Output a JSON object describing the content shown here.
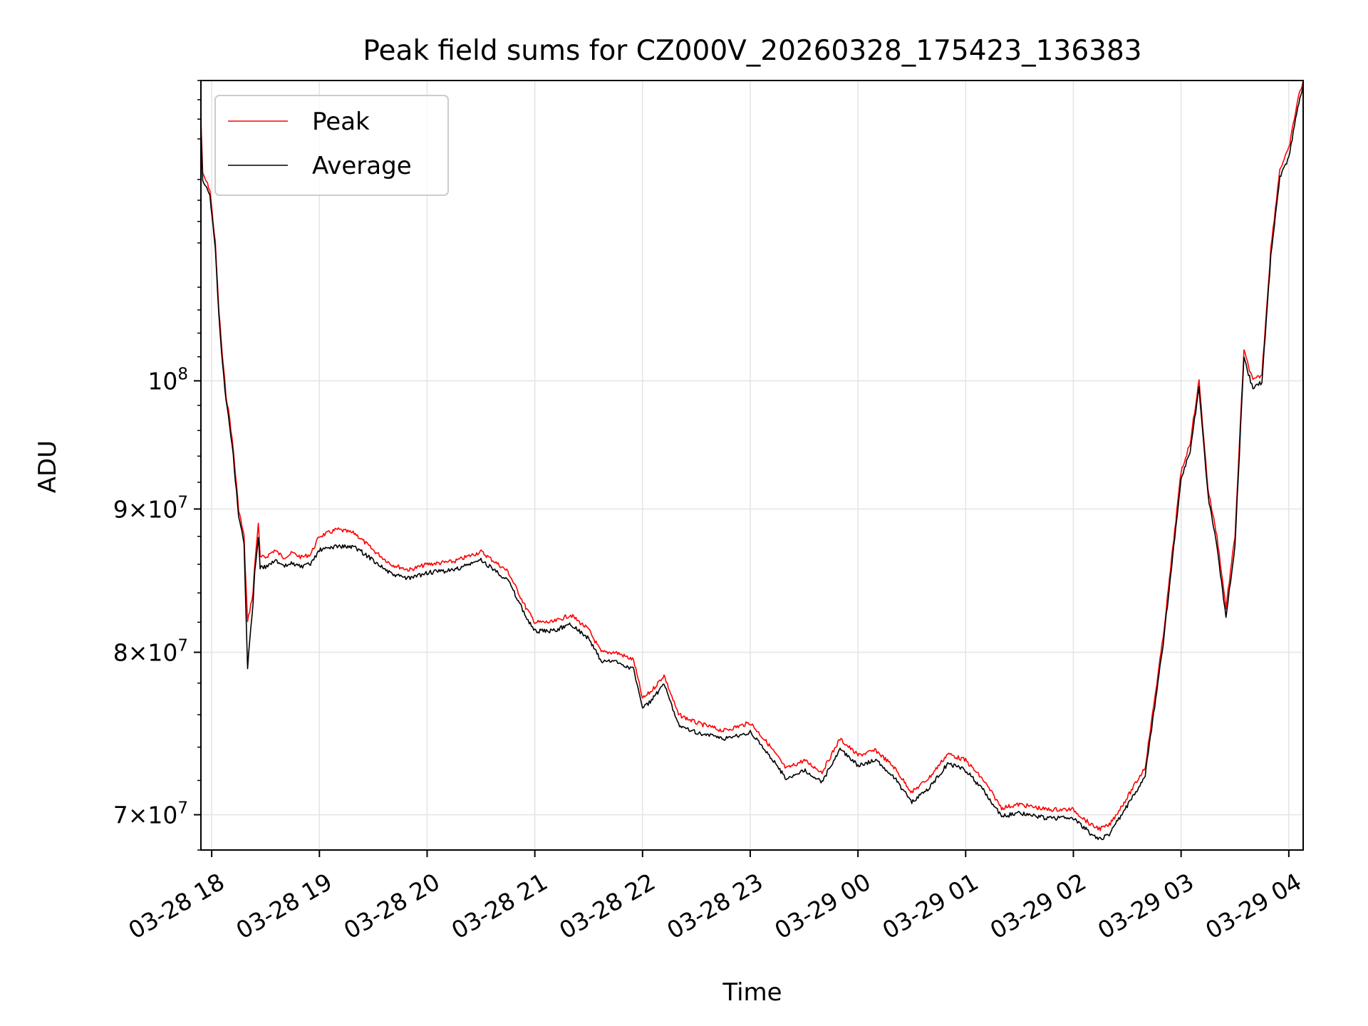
{
  "chart_data": {
    "type": "line",
    "title": "Peak field sums for CZ000V_20260328_175423_136383",
    "xlabel": "Time",
    "ylabel": "ADU",
    "y_scale": "log",
    "ylim": [
      68000000,
      128000000
    ],
    "xlim": [
      "2026-03-28 17:54",
      "2026-03-29 04:08"
    ],
    "grid": true,
    "legend_position": "upper left",
    "x_ticks": [
      {
        "t": "2026-03-28 18:00",
        "label": "03-28 18"
      },
      {
        "t": "2026-03-28 19:00",
        "label": "03-28 19"
      },
      {
        "t": "2026-03-28 20:00",
        "label": "03-28 20"
      },
      {
        "t": "2026-03-28 21:00",
        "label": "03-28 21"
      },
      {
        "t": "2026-03-28 22:00",
        "label": "03-28 22"
      },
      {
        "t": "2026-03-28 23:00",
        "label": "03-28 23"
      },
      {
        "t": "2026-03-29 00:00",
        "label": "03-29 00"
      },
      {
        "t": "2026-03-29 01:00",
        "label": "03-29 01"
      },
      {
        "t": "2026-03-29 02:00",
        "label": "03-29 02"
      },
      {
        "t": "2026-03-29 03:00",
        "label": "03-29 03"
      },
      {
        "t": "2026-03-29 04:00",
        "label": "03-29 04"
      }
    ],
    "y_ticks": [
      {
        "value": 70000000,
        "mantissa": "7",
        "base": "10",
        "exp": "7"
      },
      {
        "value": 80000000,
        "mantissa": "8",
        "base": "10",
        "exp": "7"
      },
      {
        "value": 90000000,
        "mantissa": "9",
        "base": "10",
        "exp": "7"
      },
      {
        "value": 100000000,
        "mantissa": "",
        "base": "10",
        "exp": "8"
      }
    ],
    "series": [
      {
        "name": "Peak",
        "color": "#ff0000",
        "x": [
          "2026-03-28 17:54",
          "2026-03-28 17:55",
          "2026-03-28 17:57",
          "2026-03-28 17:59",
          "2026-03-28 18:02",
          "2026-03-28 18:04",
          "2026-03-28 18:06",
          "2026-03-28 18:08",
          "2026-03-28 18:10",
          "2026-03-28 18:12",
          "2026-03-28 18:15",
          "2026-03-28 18:18",
          "2026-03-28 18:20",
          "2026-03-28 18:23",
          "2026-03-28 18:24",
          "2026-03-28 18:26",
          "2026-03-28 18:27",
          "2026-03-28 18:30",
          "2026-03-28 18:35",
          "2026-03-28 18:40",
          "2026-03-28 18:45",
          "2026-03-28 18:50",
          "2026-03-28 18:55",
          "2026-03-28 19:00",
          "2026-03-28 19:10",
          "2026-03-28 19:20",
          "2026-03-28 19:30",
          "2026-03-28 19:40",
          "2026-03-28 19:50",
          "2026-03-28 20:00",
          "2026-03-28 20:15",
          "2026-03-28 20:30",
          "2026-03-28 20:45",
          "2026-03-28 20:55",
          "2026-03-28 21:00",
          "2026-03-28 21:10",
          "2026-03-28 21:20",
          "2026-03-28 21:30",
          "2026-03-28 21:37",
          "2026-03-28 21:45",
          "2026-03-28 21:55",
          "2026-03-28 22:00",
          "2026-03-28 22:05",
          "2026-03-28 22:12",
          "2026-03-28 22:20",
          "2026-03-28 22:30",
          "2026-03-28 22:45",
          "2026-03-28 23:00",
          "2026-03-28 23:10",
          "2026-03-28 23:20",
          "2026-03-28 23:30",
          "2026-03-28 23:40",
          "2026-03-28 23:50",
          "2026-03-29 00:00",
          "2026-03-29 00:10",
          "2026-03-29 00:20",
          "2026-03-29 00:30",
          "2026-03-29 00:40",
          "2026-03-29 00:50",
          "2026-03-29 01:00",
          "2026-03-29 01:10",
          "2026-03-29 01:20",
          "2026-03-29 01:30",
          "2026-03-29 01:45",
          "2026-03-29 02:00",
          "2026-03-29 02:10",
          "2026-03-29 02:15",
          "2026-03-29 02:20",
          "2026-03-29 02:30",
          "2026-03-29 02:40",
          "2026-03-29 02:50",
          "2026-03-29 03:00",
          "2026-03-29 03:05",
          "2026-03-29 03:10",
          "2026-03-29 03:15",
          "2026-03-29 03:20",
          "2026-03-29 03:25",
          "2026-03-29 03:30",
          "2026-03-29 03:35",
          "2026-03-29 03:40",
          "2026-03-29 03:45",
          "2026-03-29 03:50",
          "2026-03-29 03:55",
          "2026-03-29 04:00",
          "2026-03-29 04:05",
          "2026-03-29 04:08"
        ],
        "y": [
          124000000,
          118500000,
          117800000,
          117000000,
          112000000,
          106000000,
          102000000,
          98800000,
          97000000,
          94500000,
          90000000,
          88000000,
          82000000,
          84000000,
          86000000,
          89000000,
          86500000,
          86500000,
          87000000,
          86500000,
          86800000,
          86500000,
          86700000,
          88000000,
          88500000,
          88200000,
          87000000,
          86000000,
          85600000,
          86000000,
          86200000,
          86900000,
          85500000,
          83000000,
          82000000,
          82000000,
          82500000,
          81500000,
          80000000,
          80000000,
          79500000,
          77000000,
          77500000,
          78500000,
          76000000,
          75500000,
          75000000,
          75500000,
          74200000,
          72700000,
          73200000,
          72500000,
          74500000,
          73500000,
          73800000,
          72800000,
          71300000,
          72200000,
          73600000,
          73200000,
          72000000,
          70400000,
          70600000,
          70300000,
          70300000,
          69400000,
          69200000,
          69400000,
          71000000,
          72800000,
          81000000,
          92800000,
          95000000,
          100000000,
          91500000,
          88000000,
          83000000,
          88000000,
          102500000,
          100000000,
          100500000,
          111500000,
          119000000,
          121000000,
          126000000,
          128000000
        ]
      },
      {
        "name": "Average",
        "color": "#000000",
        "x": [
          "2026-03-28 17:54",
          "2026-03-28 17:55",
          "2026-03-28 17:57",
          "2026-03-28 17:59",
          "2026-03-28 18:02",
          "2026-03-28 18:04",
          "2026-03-28 18:06",
          "2026-03-28 18:08",
          "2026-03-28 18:10",
          "2026-03-28 18:12",
          "2026-03-28 18:15",
          "2026-03-28 18:18",
          "2026-03-28 18:20",
          "2026-03-28 18:23",
          "2026-03-28 18:24",
          "2026-03-28 18:26",
          "2026-03-28 18:27",
          "2026-03-28 18:30",
          "2026-03-28 18:35",
          "2026-03-28 18:40",
          "2026-03-28 18:45",
          "2026-03-28 18:50",
          "2026-03-28 18:55",
          "2026-03-28 19:00",
          "2026-03-28 19:10",
          "2026-03-28 19:20",
          "2026-03-28 19:30",
          "2026-03-28 19:40",
          "2026-03-28 19:50",
          "2026-03-28 20:00",
          "2026-03-28 20:15",
          "2026-03-28 20:30",
          "2026-03-28 20:45",
          "2026-03-28 20:55",
          "2026-03-28 21:00",
          "2026-03-28 21:10",
          "2026-03-28 21:20",
          "2026-03-28 21:30",
          "2026-03-28 21:37",
          "2026-03-28 21:45",
          "2026-03-28 21:55",
          "2026-03-28 22:00",
          "2026-03-28 22:05",
          "2026-03-28 22:12",
          "2026-03-28 22:20",
          "2026-03-28 22:30",
          "2026-03-28 22:45",
          "2026-03-28 23:00",
          "2026-03-28 23:10",
          "2026-03-28 23:20",
          "2026-03-28 23:30",
          "2026-03-28 23:40",
          "2026-03-28 23:50",
          "2026-03-29 00:00",
          "2026-03-29 00:10",
          "2026-03-29 00:20",
          "2026-03-29 00:30",
          "2026-03-29 00:40",
          "2026-03-29 00:50",
          "2026-03-29 01:00",
          "2026-03-29 01:10",
          "2026-03-29 01:20",
          "2026-03-29 01:30",
          "2026-03-29 01:45",
          "2026-03-29 02:00",
          "2026-03-29 02:10",
          "2026-03-29 02:15",
          "2026-03-29 02:20",
          "2026-03-29 02:30",
          "2026-03-29 02:40",
          "2026-03-29 02:50",
          "2026-03-29 03:00",
          "2026-03-29 03:05",
          "2026-03-29 03:10",
          "2026-03-29 03:15",
          "2026-03-29 03:20",
          "2026-03-29 03:25",
          "2026-03-29 03:30",
          "2026-03-29 03:35",
          "2026-03-29 03:40",
          "2026-03-29 03:45",
          "2026-03-29 03:50",
          "2026-03-29 03:55",
          "2026-03-29 04:00",
          "2026-03-29 04:05",
          "2026-03-29 04:08"
        ],
        "y": [
          123000000,
          118000000,
          117300000,
          116500000,
          111500000,
          105500000,
          101500000,
          98300000,
          96500000,
          94000000,
          89500000,
          87500000,
          79000000,
          83300000,
          85500000,
          88000000,
          85800000,
          85800000,
          86300000,
          85800000,
          86100000,
          85800000,
          86000000,
          87000000,
          87300000,
          87200000,
          86300000,
          85300000,
          85000000,
          85400000,
          85600000,
          86300000,
          84900000,
          82400000,
          81400000,
          81400000,
          81900000,
          80900000,
          79400000,
          79400000,
          78900000,
          76400000,
          76900000,
          77900000,
          75400000,
          74900000,
          74500000,
          74900000,
          73600000,
          72100000,
          72600000,
          71900000,
          73900000,
          72900000,
          73200000,
          72200000,
          70700000,
          71600000,
          73000000,
          72600000,
          71400000,
          69900000,
          70100000,
          69800000,
          69800000,
          68900000,
          68600000,
          68900000,
          70500000,
          72300000,
          80500000,
          92300000,
          94400000,
          99400000,
          91000000,
          87300000,
          82300000,
          87300000,
          101800000,
          99400000,
          99900000,
          110800000,
          118200000,
          120200000,
          125200000,
          127500000
        ]
      }
    ]
  }
}
